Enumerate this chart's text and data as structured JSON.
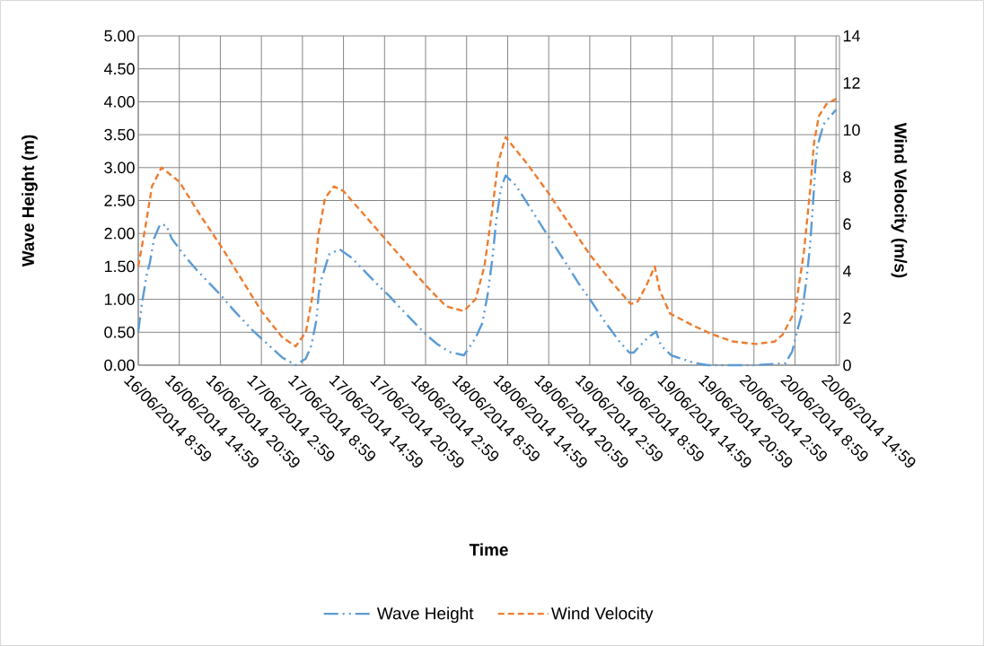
{
  "chart_data": {
    "type": "line",
    "xlabel": "Time",
    "ylabel": "Wave Height (m)",
    "y2label": "Wind Velocity (m/s)",
    "xlim": [
      "2014-06-16T08:59",
      "2014-06-20T15:29"
    ],
    "xticks": [
      {
        "value": "2014-06-16T08:59",
        "label": "16/06/2014 8:59"
      },
      {
        "value": "2014-06-16T14:59",
        "label": "16/06/2014 14:59"
      },
      {
        "value": "2014-06-16T20:59",
        "label": "16/06/2014 20:59"
      },
      {
        "value": "2014-06-17T02:59",
        "label": "17/06/2014 2:59"
      },
      {
        "value": "2014-06-17T08:59",
        "label": "17/06/2014 8:59"
      },
      {
        "value": "2014-06-17T14:59",
        "label": "17/06/2014 14:59"
      },
      {
        "value": "2014-06-17T20:59",
        "label": "17/06/2014 20:59"
      },
      {
        "value": "2014-06-18T02:59",
        "label": "18/06/2014 2:59"
      },
      {
        "value": "2014-06-18T08:59",
        "label": "18/06/2014 8:59"
      },
      {
        "value": "2014-06-18T14:59",
        "label": "18/06/2014 14:59"
      },
      {
        "value": "2014-06-18T20:59",
        "label": "18/06/2014 20:59"
      },
      {
        "value": "2014-06-19T02:59",
        "label": "19/06/2014 2:59"
      },
      {
        "value": "2014-06-19T08:59",
        "label": "19/06/2014 8:59"
      },
      {
        "value": "2014-06-19T14:59",
        "label": "19/06/2014 14:59"
      },
      {
        "value": "2014-06-19T20:59",
        "label": "19/06/2014 20:59"
      },
      {
        "value": "2014-06-20T02:59",
        "label": "20/06/2014 2:59"
      },
      {
        "value": "2014-06-20T08:59",
        "label": "20/06/2014 8:59"
      },
      {
        "value": "2014-06-20T14:59",
        "label": "20/06/2014 14:59"
      }
    ],
    "ylim": [
      0,
      5
    ],
    "yticks": [
      {
        "value": 0,
        "label": "0.00"
      },
      {
        "value": 0.5,
        "label": "0.50"
      },
      {
        "value": 1,
        "label": "1.00"
      },
      {
        "value": 1.5,
        "label": "1.50"
      },
      {
        "value": 2,
        "label": "2.00"
      },
      {
        "value": 2.5,
        "label": "2.50"
      },
      {
        "value": 3,
        "label": "3.00"
      },
      {
        "value": 3.5,
        "label": "3.50"
      },
      {
        "value": 4,
        "label": "4.00"
      },
      {
        "value": 4.5,
        "label": "4.50"
      },
      {
        "value": 5,
        "label": "5.00"
      }
    ],
    "y2lim": [
      0,
      14
    ],
    "y2ticks": [
      0,
      2,
      4,
      6,
      8,
      10,
      12,
      14
    ],
    "grid": true,
    "legend": "bottom",
    "marker": "none",
    "series": [
      {
        "name": "Wave Height",
        "color": "#5b9bd5",
        "line_style": "dashdotdot",
        "x": [
          "2014-06-16T08:59",
          "2014-06-16T09:29",
          "2014-06-16T10:11",
          "2014-06-16T10:41",
          "2014-06-16T11:17",
          "2014-06-16T12:11",
          "2014-06-16T13:05",
          "2014-06-16T13:53",
          "2014-06-16T16:05",
          "2014-06-16T17:29",
          "2014-06-16T20:59",
          "2014-06-16T22:53",
          "2014-06-17T01:41",
          "2014-06-17T05:59",
          "2014-06-17T07:59",
          "2014-06-17T09:29",
          "2014-06-17T10:17",
          "2014-06-17T10:59",
          "2014-06-17T11:23",
          "2014-06-17T11:47",
          "2014-06-17T12:53",
          "2014-06-17T14:23",
          "2014-06-17T16:11",
          "2014-06-17T20:17",
          "2014-06-17T21:41",
          "2014-06-17T23:05",
          "2014-06-18T03:05",
          "2014-06-18T04:41",
          "2014-06-18T06:29",
          "2014-06-18T08:35",
          "2014-06-18T10:17",
          "2014-06-18T11:17",
          "2014-06-18T12:05",
          "2014-06-18T12:47",
          "2014-06-18T13:17",
          "2014-06-18T13:59",
          "2014-06-18T14:41",
          "2014-06-18T16:11",
          "2014-06-18T18:05",
          "2014-06-18T20:17",
          "2014-06-18T21:23",
          "2014-06-18T23:29",
          "2014-06-19T01:41",
          "2014-06-19T02:53",
          "2014-06-19T04:59",
          "2014-06-19T07:23",
          "2014-06-19T08:47",
          "2014-06-19T09:23",
          "2014-06-19T11:23",
          "2014-06-19T12:41",
          "2014-06-19T13:23",
          "2014-06-19T14:53",
          "2014-06-19T18:23",
          "2014-06-19T20:17",
          "2014-06-20T02:59",
          "2014-06-20T07:35",
          "2014-06-20T08:35",
          "2014-06-20T09:23",
          "2014-06-20T09:59",
          "2014-06-20T10:41",
          "2014-06-20T11:11",
          "2014-06-20T11:35",
          "2014-06-20T11:59",
          "2014-06-20T12:17",
          "2014-06-20T13:11",
          "2014-06-20T14:59"
        ],
        "values": [
          0.51,
          0.91,
          1.35,
          1.56,
          1.92,
          2.14,
          2.12,
          1.92,
          1.62,
          1.45,
          1.07,
          0.84,
          0.53,
          0.12,
          0,
          0.1,
          0.3,
          0.66,
          1.1,
          1.31,
          1.68,
          1.76,
          1.63,
          1.19,
          1.05,
          0.89,
          0.46,
          0.32,
          0.2,
          0.15,
          0.41,
          0.64,
          1.09,
          1.65,
          2.17,
          2.68,
          2.88,
          2.73,
          2.42,
          2.06,
          1.89,
          1.55,
          1.19,
          1.02,
          0.69,
          0.35,
          0.19,
          0.19,
          0.41,
          0.51,
          0.3,
          0.15,
          0.03,
          0,
          0,
          0.03,
          0.21,
          0.55,
          0.78,
          1.32,
          1.81,
          2.4,
          3.05,
          3.34,
          3.66,
          3.88
        ]
      },
      {
        "name": "Wind Velocity",
        "color": "#ed7d31",
        "line_style": "dashed",
        "axis": "y2",
        "x": [
          "2014-06-16T08:59",
          "2014-06-16T09:59",
          "2014-06-16T10:59",
          "2014-06-16T12:23",
          "2014-06-16T14:59",
          "2014-06-16T17:59",
          "2014-06-16T20:59",
          "2014-06-16T23:59",
          "2014-06-17T02:59",
          "2014-06-17T05:59",
          "2014-06-17T07:59",
          "2014-06-17T09:29",
          "2014-06-17T10:29",
          "2014-06-17T11:17",
          "2014-06-17T12:17",
          "2014-06-17T13:35",
          "2014-06-17T14:59",
          "2014-06-17T17:59",
          "2014-06-17T20:59",
          "2014-06-17T23:59",
          "2014-06-18T02:59",
          "2014-06-18T05:59",
          "2014-06-18T08:35",
          "2014-06-18T10:17",
          "2014-06-18T11:35",
          "2014-06-18T12:41",
          "2014-06-18T13:35",
          "2014-06-18T14:41",
          "2014-06-18T17:59",
          "2014-06-18T20:59",
          "2014-06-18T23:59",
          "2014-06-19T02:59",
          "2014-06-19T05:59",
          "2014-06-19T08:59",
          "2014-06-19T09:59",
          "2014-06-19T11:17",
          "2014-06-19T12:29",
          "2014-06-19T13:11",
          "2014-06-19T14:41",
          "2014-06-19T17:59",
          "2014-06-19T20:59",
          "2014-06-19T23:59",
          "2014-06-20T03:17",
          "2014-06-20T05:59",
          "2014-06-20T07:11",
          "2014-06-20T08:59",
          "2014-06-20T10:17",
          "2014-06-20T11:11",
          "2014-06-20T11:47",
          "2014-06-20T12:29",
          "2014-06-20T13:35",
          "2014-06-20T15:29"
        ],
        "values": [
          4.2,
          5.8,
          7.6,
          8.4,
          7.8,
          6.4,
          5.1,
          3.7,
          2.3,
          1.2,
          0.8,
          1.4,
          3.0,
          5.5,
          7.1,
          7.6,
          7.4,
          6.4,
          5.4,
          4.4,
          3.4,
          2.5,
          2.3,
          2.8,
          4.2,
          6.5,
          8.6,
          9.7,
          8.5,
          7.3,
          6.0,
          4.7,
          3.6,
          2.6,
          2.7,
          3.4,
          4.2,
          3.2,
          2.2,
          1.7,
          1.3,
          1.0,
          0.9,
          1.0,
          1.3,
          2.3,
          4.8,
          7.4,
          9.5,
          10.6,
          11.1,
          11.4
        ]
      }
    ]
  }
}
